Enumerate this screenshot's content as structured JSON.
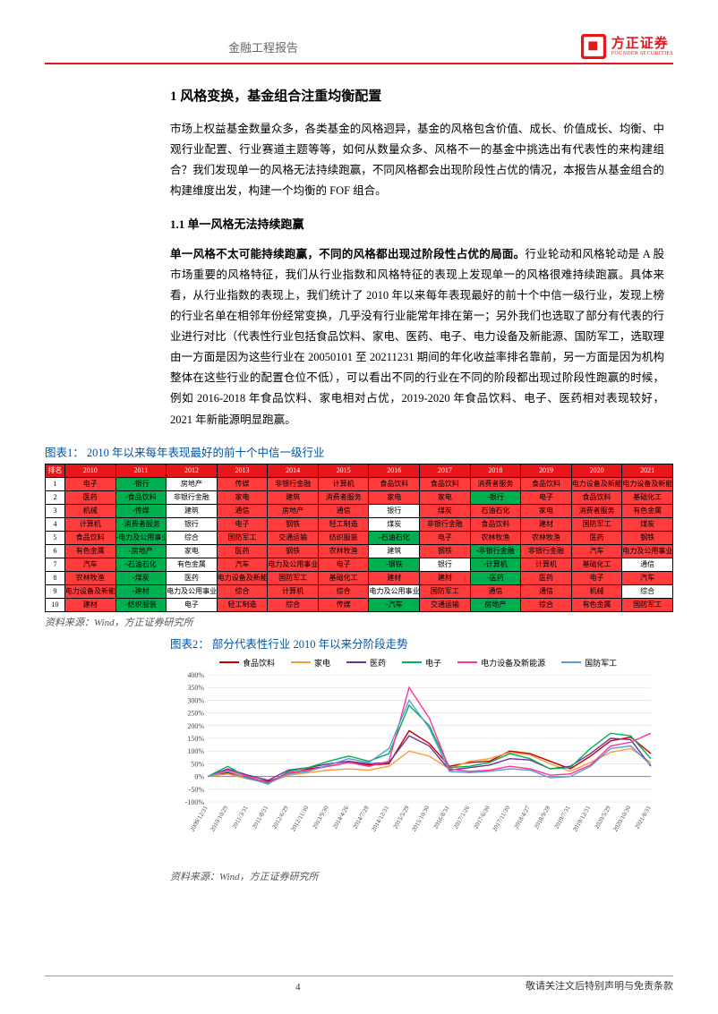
{
  "header": {
    "title": "金融工程报告",
    "logo_cn": "方正证券",
    "logo_en": "FOUNDER SECURITIES"
  },
  "sec1": {
    "h1": "1  风格变换，基金组合注重均衡配置",
    "p1": "市场上权益基金数量众多，各类基金的风格迥异，基金的风格包含价值、成长、价值成长、均衡、中观行业配置、行业赛道主题等等，如何从数量众多、风格不一的基金中挑选出有代表性的来构建组合？我们发现单一的风格无法持续跑赢，不同风格都会出现阶段性占优的情况，本报告从基金组合的构建维度出发，构建一个均衡的 FOF 组合。",
    "h2": "1.1  单一风格无法持续跑赢",
    "p2a": "单一风格不太可能持续跑赢，不同的风格都出现过阶段性占优的局面。",
    "p2b": "行业轮动和风格轮动是 A 股市场重要的风格特征，我们从行业指数和风格特征的表现上发现单一的风格很难持续跑赢。具体来看，从行业指数的表现上，我们统计了 2010 年以来每年表现最好的前十个中信一级行业，发现上榜的行业名单在相邻年份经常变换，几乎没有行业能常年排在第一；另外我们也选取了部分有代表的行业进行对比（代表性行业包括食品饮料、家电、医药、电子、电力设备及新能源、国防军工，选取理由一方面是因为这些行业在 20050101 至 20211231 期间的年化收益率排名靠前，另一方面是因为机构整体在这些行业的配置仓位不低），可以看出不同的行业在不同的阶段都出现过阶段性跑赢的时候，例如 2016-2018 年食品饮料、家电相对占优，2019-2020 年食品饮料、电子、医药相对表现较好，2021 年新能源明显跑赢。"
  },
  "fig1": {
    "title": "图表1：  2010 年以来每年表现最好的前十个中信一级行业",
    "years": [
      "排名",
      "2010",
      "2011",
      "2012",
      "2013",
      "2014",
      "2015",
      "2016",
      "2017",
      "2018",
      "2019",
      "2020",
      "2021"
    ],
    "rows": [
      [
        "1",
        [
          "电子",
          "r"
        ],
        [
          "-银行",
          "g"
        ],
        [
          "房地产",
          "w"
        ],
        [
          "传媒",
          "r"
        ],
        [
          "非银行金融",
          "r"
        ],
        [
          "计算机",
          "r"
        ],
        [
          "食品饮料",
          "r"
        ],
        [
          "食品饮料",
          "r"
        ],
        [
          "消费者服务",
          "r"
        ],
        [
          "食品饮料",
          "r"
        ],
        [
          "电力设备及新能源",
          "r"
        ],
        [
          "电力设备及新能源",
          "r"
        ]
      ],
      [
        "2",
        [
          "医药",
          "r"
        ],
        [
          "-食品饮料",
          "g"
        ],
        [
          "非银行金融",
          "w"
        ],
        [
          "家电",
          "r"
        ],
        [
          "建筑",
          "r"
        ],
        [
          "消费者服务",
          "r"
        ],
        [
          "家电",
          "r"
        ],
        [
          "家电",
          "r"
        ],
        [
          "-银行",
          "g"
        ],
        [
          "电子",
          "r"
        ],
        [
          "食品饮料",
          "r"
        ],
        [
          "基础化工",
          "r"
        ]
      ],
      [
        "3",
        [
          "机械",
          "r"
        ],
        [
          "-传媒",
          "g"
        ],
        [
          "建筑",
          "w"
        ],
        [
          "通信",
          "r"
        ],
        [
          "房地产",
          "r"
        ],
        [
          "通信",
          "r"
        ],
        [
          "银行",
          "w"
        ],
        [
          "煤炭",
          "r"
        ],
        [
          "石油石化",
          "r"
        ],
        [
          "家电",
          "r"
        ],
        [
          "消费者服务",
          "r"
        ],
        [
          "有色金属",
          "r"
        ]
      ],
      [
        "4",
        [
          "计算机",
          "r"
        ],
        [
          "-消费者服务",
          "g"
        ],
        [
          "银行",
          "w"
        ],
        [
          "电子",
          "r"
        ],
        [
          "钢铁",
          "r"
        ],
        [
          "轻工制造",
          "r"
        ],
        [
          "煤炭",
          "w"
        ],
        [
          "非银行金融",
          "r"
        ],
        [
          "食品饮料",
          "r"
        ],
        [
          "建材",
          "r"
        ],
        [
          "国防军工",
          "r"
        ],
        [
          "煤炭",
          "r"
        ]
      ],
      [
        "5",
        [
          "食品饮料",
          "r"
        ],
        [
          "-电力及公用事业",
          "g"
        ],
        [
          "综合",
          "w"
        ],
        [
          "国防军工",
          "r"
        ],
        [
          "交通运输",
          "r"
        ],
        [
          "纺织服装",
          "r"
        ],
        [
          "-石油石化",
          "g"
        ],
        [
          "电子",
          "r"
        ],
        [
          "农林牧渔",
          "r"
        ],
        [
          "农林牧渔",
          "r"
        ],
        [
          "医药",
          "r"
        ],
        [
          "钢铁",
          "r"
        ]
      ],
      [
        "6",
        [
          "有色金属",
          "r"
        ],
        [
          "-房地产",
          "g"
        ],
        [
          "家电",
          "w"
        ],
        [
          "医药",
          "r"
        ],
        [
          "钢铁",
          "r"
        ],
        [
          "农林牧渔",
          "r"
        ],
        [
          "建筑",
          "w"
        ],
        [
          "钢铁",
          "r"
        ],
        [
          "-非银行金融",
          "g"
        ],
        [
          "非银行金融",
          "r"
        ],
        [
          "汽车",
          "r"
        ],
        [
          "电力及公用事业",
          "r"
        ]
      ],
      [
        "7",
        [
          "汽车",
          "r"
        ],
        [
          "-石油石化",
          "g"
        ],
        [
          "有色金属",
          "w"
        ],
        [
          "汽车",
          "r"
        ],
        [
          "电力及公用事业",
          "r"
        ],
        [
          "电子",
          "r"
        ],
        [
          "-钢铁",
          "g"
        ],
        [
          "银行",
          "w"
        ],
        [
          "-计算机",
          "g"
        ],
        [
          "计算机",
          "r"
        ],
        [
          "基础化工",
          "r"
        ],
        [
          "通信",
          "w"
        ]
      ],
      [
        "8",
        [
          "农林牧渔",
          "r"
        ],
        [
          "-煤炭",
          "g"
        ],
        [
          "医药",
          "w"
        ],
        [
          "电力设备及新能源",
          "r"
        ],
        [
          "国防军工",
          "r"
        ],
        [
          "基础化工",
          "r"
        ],
        [
          "建材",
          "r"
        ],
        [
          "建材",
          "r"
        ],
        [
          "-医药",
          "g"
        ],
        [
          "医药",
          "r"
        ],
        [
          "电子",
          "r"
        ],
        [
          "汽车",
          "r"
        ]
      ],
      [
        "9",
        [
          "电力设备及新能源",
          "r"
        ],
        [
          "-建材",
          "g"
        ],
        [
          "电力及公用事业",
          "w"
        ],
        [
          "综合",
          "r"
        ],
        [
          "计算机",
          "r"
        ],
        [
          "综合",
          "r"
        ],
        [
          "电力及公用事业",
          "w"
        ],
        [
          "国防军工",
          "r"
        ],
        [
          "通信",
          "r"
        ],
        [
          "通信",
          "r"
        ],
        [
          "机械",
          "r"
        ],
        [
          "综合",
          "w"
        ]
      ],
      [
        "10",
        [
          "建材",
          "r"
        ],
        [
          "-纺织服装",
          "g"
        ],
        [
          "电子",
          "w"
        ],
        [
          "轻工制造",
          "r"
        ],
        [
          "综合",
          "r"
        ],
        [
          "传媒",
          "r"
        ],
        [
          "-汽车",
          "g"
        ],
        [
          "交通运输",
          "r"
        ],
        [
          "房地产",
          "g"
        ],
        [
          "综合",
          "r"
        ],
        [
          "有色金属",
          "r"
        ],
        [
          "国防军工",
          "r"
        ]
      ]
    ],
    "src": "资料来源：Wind，方正证券研究所"
  },
  "fig2": {
    "title": "图表2：  部分代表性行业 2010 年以来分阶段走势",
    "legend": [
      {
        "name": "食品饮料",
        "color": "#c00000"
      },
      {
        "name": "家电",
        "color": "#ff9933"
      },
      {
        "name": "医药",
        "color": "#7030a0"
      },
      {
        "name": "电子",
        "color": "#00b050"
      },
      {
        "name": "电力设备及新能源",
        "color": "#ff3399"
      },
      {
        "name": "国防军工",
        "color": "#5b9bd5"
      }
    ],
    "ylabels": [
      "400%",
      "350%",
      "300%",
      "250%",
      "200%",
      "150%",
      "100%",
      "50%",
      "0%",
      "-50%",
      "-100%"
    ],
    "xlabels": [
      "2009/12/31",
      "2010/10/29",
      "2011/3/31",
      "2011/8/31",
      "2012/6/29",
      "2012/11/30",
      "2013/9/30",
      "2014/4/26",
      "2014/7/28",
      "2014/12/31",
      "2015/5/29",
      "2015/10/30",
      "2016/8/31",
      "2017/1/26",
      "2017/6/30",
      "2017/11/30",
      "2018/4/27",
      "2018/9/28",
      "2019/7/31",
      "2019/12/31",
      "2020/5/29",
      "2020/10/30",
      "2021/8/31"
    ],
    "ylim": [
      -100,
      400
    ],
    "series": {
      "food": [
        0,
        15,
        -5,
        -20,
        10,
        30,
        40,
        55,
        45,
        50,
        180,
        130,
        40,
        55,
        60,
        100,
        90,
        60,
        30,
        80,
        140,
        155,
        90
      ],
      "appl": [
        0,
        10,
        -10,
        -25,
        5,
        15,
        25,
        30,
        25,
        40,
        100,
        80,
        30,
        60,
        70,
        95,
        85,
        50,
        20,
        55,
        95,
        110,
        55
      ],
      "med": [
        0,
        30,
        5,
        -15,
        25,
        35,
        50,
        60,
        50,
        55,
        160,
        120,
        25,
        35,
        45,
        70,
        65,
        30,
        40,
        90,
        150,
        145,
        40
      ],
      "elec": [
        0,
        40,
        -5,
        -30,
        20,
        35,
        60,
        80,
        60,
        90,
        280,
        200,
        35,
        40,
        55,
        90,
        70,
        30,
        35,
        110,
        170,
        160,
        70
      ],
      "power": [
        0,
        25,
        0,
        -25,
        15,
        25,
        40,
        55,
        40,
        60,
        350,
        230,
        30,
        20,
        25,
        40,
        30,
        5,
        10,
        45,
        120,
        135,
        170
      ],
      "mil": [
        0,
        20,
        -8,
        -28,
        10,
        20,
        45,
        70,
        55,
        110,
        300,
        190,
        20,
        15,
        20,
        30,
        25,
        -5,
        0,
        40,
        110,
        120,
        45
      ]
    },
    "src": "资料来源：Wind，方正证券研究所",
    "bg": "#ffffff",
    "grid": "#d9d9d9"
  },
  "footer": {
    "page": "4",
    "disc": "敬请关注文后特别声明与免责条款"
  }
}
